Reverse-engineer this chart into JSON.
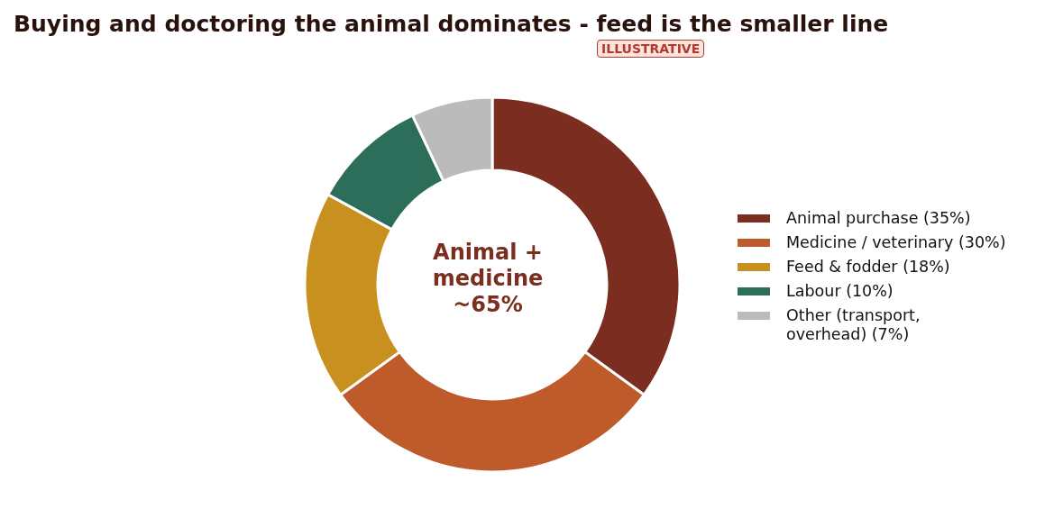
{
  "chart_data": {
    "type": "donut",
    "title": "Buying and doctoring the animal dominates - feed is the smaller line",
    "categories": [
      "Animal purchase (35%)",
      "Medicine / veterinary (30%)",
      "Feed & fodder (18%)",
      "Labour (10%)",
      "Other (transport,\noverhead) (7%)"
    ],
    "values": [
      35,
      30,
      18,
      10,
      7
    ],
    "colors": [
      "#7b2d20",
      "#bf5a2b",
      "#c8901e",
      "#2d6e5a",
      "#bbbbbb"
    ],
    "annotations": [
      "ILLUSTRATIVE",
      "Animal +\nmedicine\n~65%"
    ],
    "legend": "right"
  }
}
